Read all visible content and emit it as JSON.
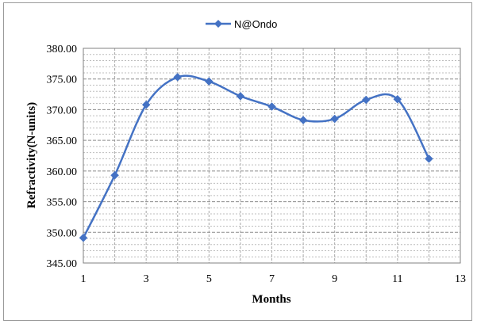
{
  "chart_data": {
    "type": "line",
    "xlabel": "Months",
    "ylabel": "Refractivity(N-units)",
    "xlim": [
      1,
      13
    ],
    "ylim": [
      345,
      380
    ],
    "x_ticks": [
      1,
      3,
      5,
      7,
      9,
      11,
      13
    ],
    "y_ticks": [
      "345.00",
      "350.00",
      "355.00",
      "360.00",
      "365.00",
      "370.00",
      "375.00",
      "380.00"
    ],
    "grid": true,
    "grid_style": "dashed",
    "legend_position": "top-center",
    "smooth": true,
    "marker": "diamond",
    "series": [
      {
        "name": "N@Ondo",
        "color": "#4472C4",
        "x": [
          1,
          2,
          3,
          4,
          5,
          6,
          7,
          8,
          9,
          10,
          11,
          12
        ],
        "values": [
          349.1,
          359.3,
          370.8,
          375.3,
          374.6,
          372.2,
          370.5,
          368.3,
          368.5,
          371.6,
          371.7,
          362.0
        ]
      }
    ]
  }
}
